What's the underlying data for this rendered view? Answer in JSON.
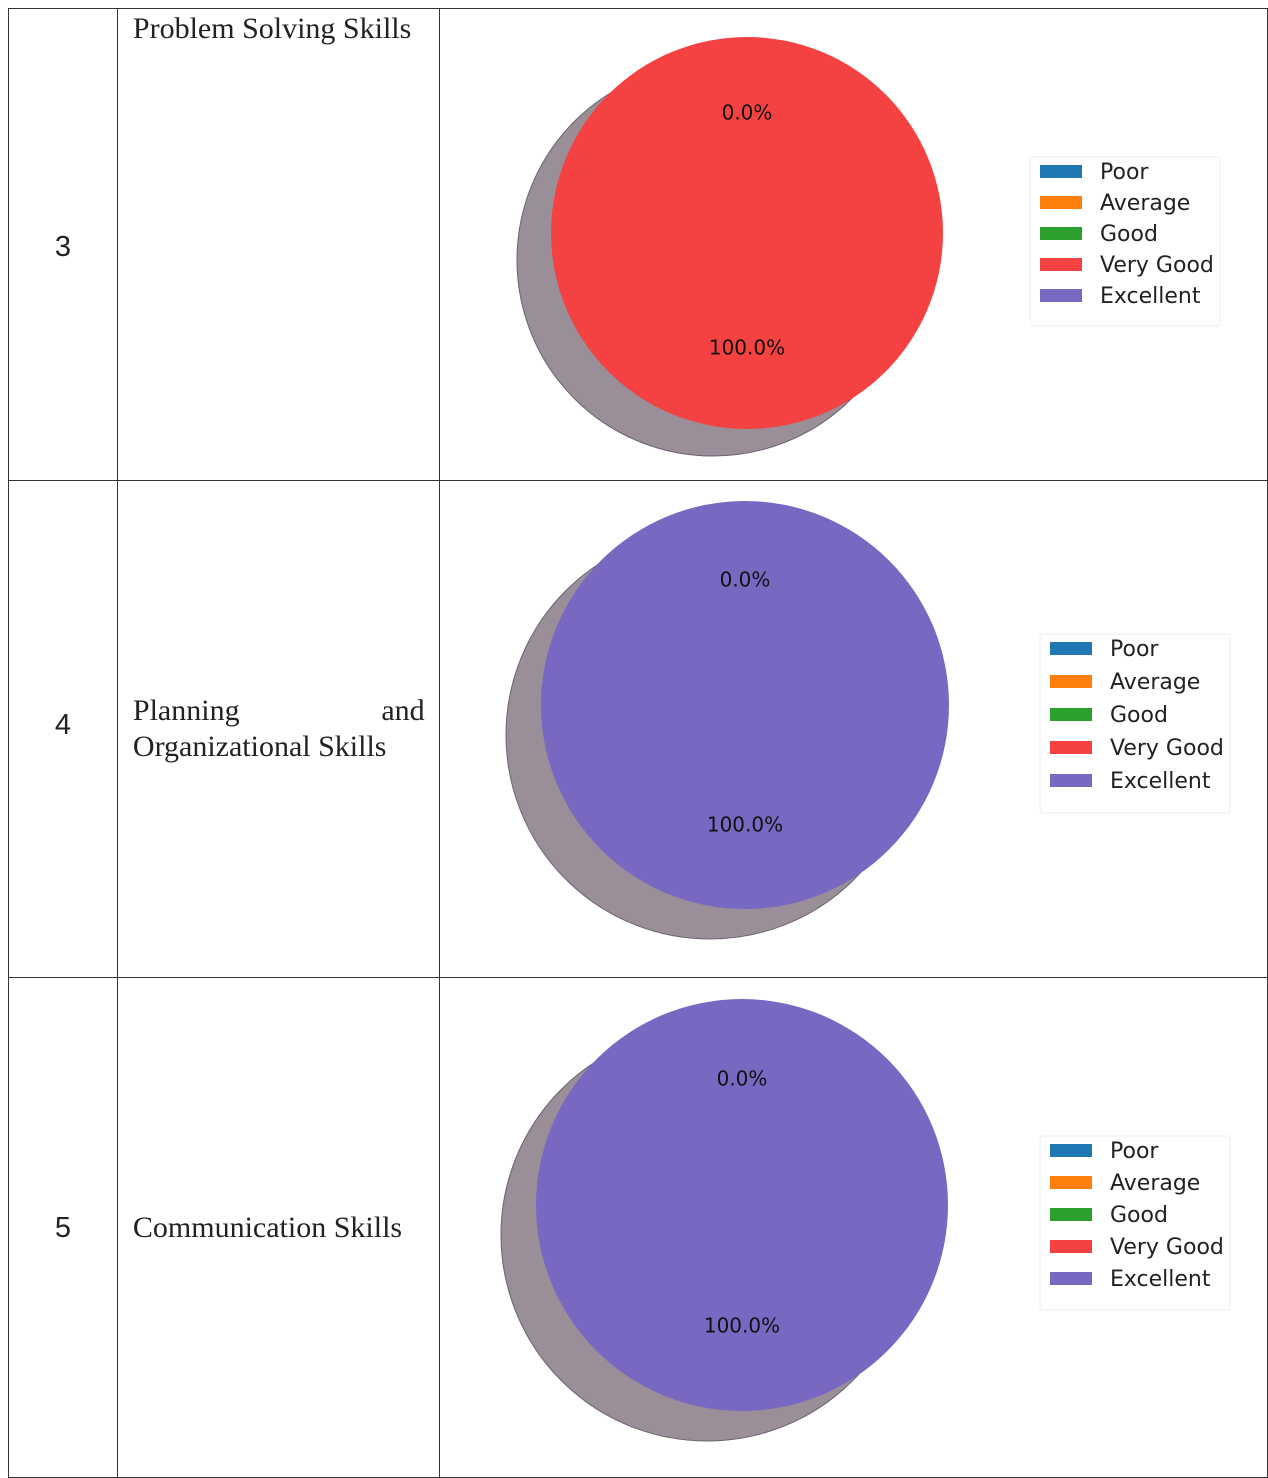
{
  "rows": [
    {
      "num": "3",
      "skill": "Problem Solving Skills",
      "chart_data": {
        "type": "pie",
        "categories": [
          "Poor",
          "Average",
          "Good",
          "Very Good",
          "Excellent"
        ],
        "values": [
          0,
          0,
          0,
          100,
          0
        ],
        "labels": [
          "0.0%",
          "100.0%"
        ],
        "legend_position": "right",
        "shadow": true
      }
    },
    {
      "num": "4",
      "skill": "Planning and Organizational Skills",
      "skill_line1_left": "Planning",
      "skill_line1_right": "and",
      "skill_line2": "Organizational Skills",
      "chart_data": {
        "type": "pie",
        "categories": [
          "Poor",
          "Average",
          "Good",
          "Very Good",
          "Excellent"
        ],
        "values": [
          0,
          0,
          0,
          0,
          100
        ],
        "labels": [
          "0.0%",
          "100.0%"
        ],
        "legend_position": "right",
        "shadow": true
      }
    },
    {
      "num": "5",
      "skill": "Communication Skills",
      "chart_data": {
        "type": "pie",
        "categories": [
          "Poor",
          "Average",
          "Good",
          "Very Good",
          "Excellent"
        ],
        "values": [
          0,
          0,
          0,
          0,
          100
        ],
        "labels": [
          "0.0%",
          "100.0%"
        ],
        "legend_position": "right",
        "shadow": true
      }
    }
  ],
  "colors": {
    "Poor": "#1f77b4",
    "Average": "#ff7f0e",
    "Good": "#2ca02c",
    "Very Good": "#f44242",
    "Excellent": "#7868c2",
    "shadow": "#9a8e98"
  }
}
